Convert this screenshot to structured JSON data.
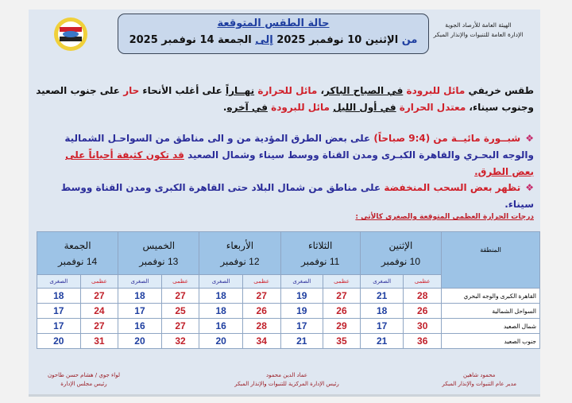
{
  "header": {
    "org_line1": "الهيئة العامة للأرصاد الجوية",
    "org_line2": "الإدارة العامة للتنبوات والإنذار المبكر",
    "title": "حالة الطقس المتوقعة",
    "range_from": "من",
    "range_start": "الإثنين 10 نوفمبر 2025",
    "range_to": "إلى",
    "range_end": "الجمعة 14 نوفمبر 2025",
    "logo": "egyptian-meteorological-authority-logo"
  },
  "summary": {
    "s1": "طقس خريفي ",
    "s2": "مائل للبرودة",
    "s3": " ",
    "s4": "في الصباح الباكر",
    "s5": "، ",
    "s6": "مائل للحرارة",
    "s7": " ",
    "s8": "نهــاراً",
    "s9": " على أغلب الأنحاء ",
    "s10": "حار",
    "s11": " على جنوب الصعيد وجنوب سيناء، ",
    "s12": "معتدل الحرارة",
    "s13": " ",
    "s14": "في أول الليل",
    "s15": " ",
    "s16": "مائل للبرودة",
    "s17": " ",
    "s18": "في آخره",
    "s19": "."
  },
  "bullets": [
    {
      "b1": "شبــورة مائيــة من (9:4 صباحاً)",
      "b2": " على بعض الطرق المؤدية من و الى مناطق من  السواحـل الشمالية والوجه البحـري والقاهرة الكبـرى  ومدن القناة ووسط سيناء وشمال الصعيد ",
      "b3": "قد تكون كثيفة أحياناً على بعض الطرق."
    },
    {
      "b1": "تظهر بعض السحب المنخفضة",
      "b2": " على مناطق من شمال البلاد حتى القاهرة الكبرى ومدن القناة ووسط سيناء."
    }
  ],
  "table": {
    "caption": "درجات الحرارة العظمى المتوقعة والصغرى كالأتى :",
    "region_header": "المنطقة",
    "max_label": "عظمى",
    "min_label": "الصغرى",
    "days": [
      {
        "name": "الإثنين",
        "date": "10  نوفمبر"
      },
      {
        "name": "الثلاثاء",
        "date": "11  نوفمبر"
      },
      {
        "name": "الأربعاء",
        "date": "12  نوفمبر"
      },
      {
        "name": "الخميس",
        "date": "13  نوفمبر"
      },
      {
        "name": "الجمعة",
        "date": "14  نوفمبر"
      }
    ],
    "rows": [
      {
        "region": "القاهرة الكبرى والوجه البحري",
        "vals": [
          28,
          21,
          27,
          19,
          27,
          18,
          27,
          18,
          27,
          18
        ]
      },
      {
        "region": "السواحل الشمالية",
        "vals": [
          26,
          18,
          26,
          19,
          26,
          18,
          25,
          17,
          24,
          17
        ]
      },
      {
        "region": "شمال الصعيد",
        "vals": [
          30,
          17,
          29,
          17,
          28,
          16,
          27,
          16,
          27,
          17
        ]
      },
      {
        "region": "جنوب الصعيد",
        "vals": [
          36,
          21,
          35,
          21,
          34,
          20,
          32,
          20,
          31,
          20
        ]
      }
    ]
  },
  "signatures": [
    {
      "name": "محمود شاهين",
      "title": "مدير عام التنبوات والإنذار المبكر"
    },
    {
      "name": "عماد الدين محمود",
      "title": "رئيس الإدارة المركزية للتنبوات والإنذار المبكر"
    },
    {
      "name": "لواء جوي / هشام حسن طاحون",
      "title": "رئيس مجلس الإدارة"
    }
  ]
}
